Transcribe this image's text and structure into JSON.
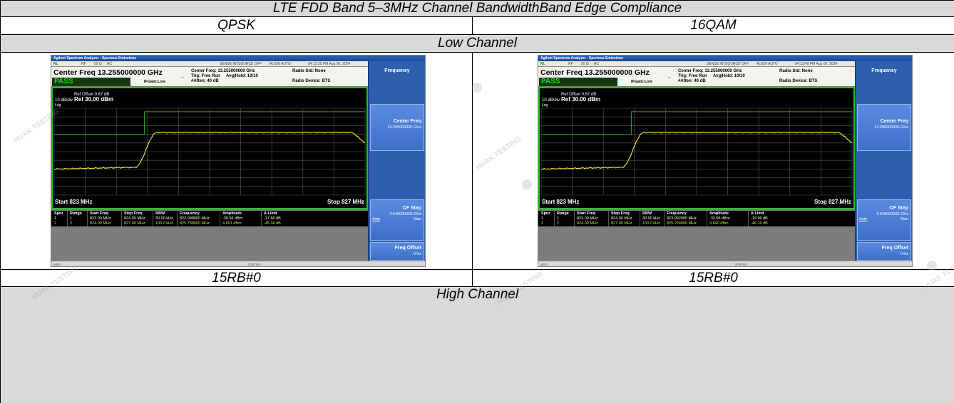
{
  "report": {
    "title": "LTE FDD Band 5–3MHz Channel BandwidthBand Edge Compliance",
    "columns": [
      "QPSK",
      "16QAM"
    ],
    "low_channel_label": "Low Channel",
    "high_channel_label": "High Channel",
    "captions": [
      "15RB#0",
      "15RB#0"
    ]
  },
  "watermark": "HUAK TESTING",
  "shots": [
    {
      "app_title": "Agilent Spectrum Analyzer - Spurious Emissions",
      "status": {
        "rl": "RL",
        "rf": "RF",
        "ohm": "50 Ω",
        "ac": "AC",
        "sense": "SENSE:INT",
        "source": "SOURCE OFF",
        "align": "ALIGN AUTO",
        "time": "04:12:35 PM Aug 06, 2024"
      },
      "center_freq": "Center Freq 13.255000000 GHz",
      "pass": "PASS",
      "ifgain": "IFGain:Low",
      "sweep": {
        "line1": "Center Freq: 13.255000000 GHz",
        "line2": "Trig: Free Run",
        "avg": "Avg|Hold: 10/10",
        "line3": "#Atten: 40 dB"
      },
      "radio": {
        "std": "Radio Std: None",
        "device": "Radio Device: BTS"
      },
      "ref_offset": "Ref Offset 0.67 dB",
      "scale": "10 dB/div",
      "ref_level": "Ref 30.00 dBm",
      "log": "Log",
      "start": "Start  823 MHz",
      "stop": "Stop 827 MHz",
      "table": {
        "headers": [
          "Spur",
          "Range",
          "Start Freq",
          "Stop Freq",
          "RBW",
          "Frequency",
          "Amplitude",
          "Δ Limit"
        ],
        "rows": [
          [
            "1",
            "1",
            "823.00 MHz",
            "824.00 MHz",
            "30.00 kHz",
            "823.998000 MHz",
            "-30.56 dBm",
            "-17.56 dB"
          ],
          [
            "2",
            "2",
            "824.00 MHz",
            "827.00 MHz",
            "100.0 kHz",
            "825.788000 MHz",
            "4.661 dBm",
            "-45.34 dB"
          ]
        ]
      },
      "softkeys": {
        "menu": "Frequency",
        "center_freq_label": "Center Freq",
        "center_freq_value": "13.255000000 GHz",
        "cf_step_label": "CF Step",
        "cf_step_value": "2.649000000 GHz",
        "auto": "Auto",
        "man": "Man",
        "freq_offset_label": "Freq Offset",
        "freq_offset_value": "0 Hz"
      },
      "msg": "MSG",
      "statusbar": "STATUS"
    },
    {
      "app_title": "Agilent Spectrum Analyzer - Spurious Emissions",
      "status": {
        "rl": "RL",
        "rf": "RF",
        "ohm": "50 Ω",
        "ac": "AC",
        "sense": "SENSE:INT",
        "source": "SOURCE OFF",
        "align": "ALIGN AUTO",
        "time": "04:13:49 PM Aug 06, 2024"
      },
      "center_freq": "Center Freq 13.255000000 GHz",
      "pass": "PASS",
      "ifgain": "IFGain:Low",
      "sweep": {
        "line1": "Center Freq: 13.255000000 GHz",
        "line2": "Trig: Free Run",
        "avg": "Avg|Hold: 10/10",
        "line3": "#Atten: 40 dB"
      },
      "radio": {
        "std": "Radio Std: None",
        "device": "Radio Device: BTS"
      },
      "ref_offset": "Ref Offset 0.67 dB",
      "scale": "10 dB/div",
      "ref_level": "Ref 30.00 dBm",
      "log": "Log",
      "start": "Start  823 MHz",
      "stop": "Stop 827 MHz",
      "table": {
        "headers": [
          "Spur",
          "Range",
          "Start Freq",
          "Stop Freq",
          "RBW",
          "Frequency",
          "Amplitude",
          "Δ Limit"
        ],
        "rows": [
          [
            "1",
            "1",
            "823.00 MHz",
            "824.00 MHz",
            "30.00 kHz",
            "823.992000 MHz",
            "-32.96 dBm",
            "-19.96 dB"
          ],
          [
            "2",
            "2",
            "824.00 MHz",
            "827.00 MHz",
            "100.0 kHz",
            "825.224000 MHz",
            "3.840 dBm",
            "-46.16 dB"
          ]
        ]
      },
      "softkeys": {
        "menu": "Frequency",
        "center_freq_label": "Center Freq",
        "center_freq_value": "13.255000000 GHz",
        "cf_step_label": "CF Step",
        "cf_step_value": "2.649000000 GHz",
        "auto": "Auto",
        "man": "Man",
        "freq_offset_label": "Freq Offset",
        "freq_offset_value": "0 Hz"
      },
      "msg": "MSG",
      "statusbar": "STATUS"
    }
  ]
}
